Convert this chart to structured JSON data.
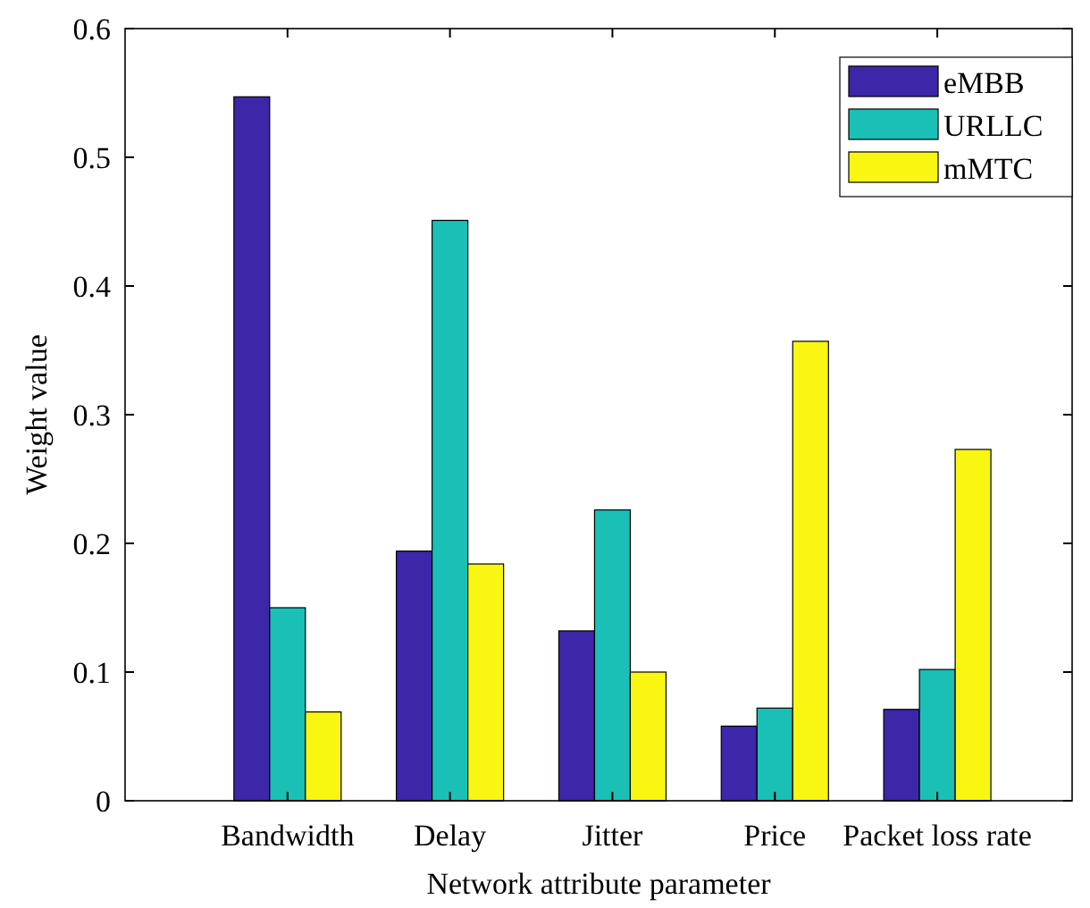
{
  "chart_data": {
    "type": "bar",
    "xlabel": "Network attribute parameter",
    "ylabel": "Weight value",
    "categories": [
      "Bandwidth",
      "Delay",
      "Jitter",
      "Price",
      "Packet loss rate"
    ],
    "series": [
      {
        "name": "eMBB",
        "color": "#3d26a8",
        "values": [
          0.547,
          0.194,
          0.132,
          0.058,
          0.071
        ]
      },
      {
        "name": "URLLC",
        "color": "#1abfb5",
        "values": [
          0.15,
          0.451,
          0.226,
          0.072,
          0.102
        ]
      },
      {
        "name": "mMTC",
        "color": "#f9f611",
        "values": [
          0.069,
          0.184,
          0.1,
          0.357,
          0.273
        ]
      }
    ],
    "ylim": [
      0,
      0.6
    ],
    "yticks": [
      0,
      0.1,
      0.2,
      0.3,
      0.4,
      0.5,
      0.6
    ],
    "grid": false,
    "legend": "top right"
  }
}
